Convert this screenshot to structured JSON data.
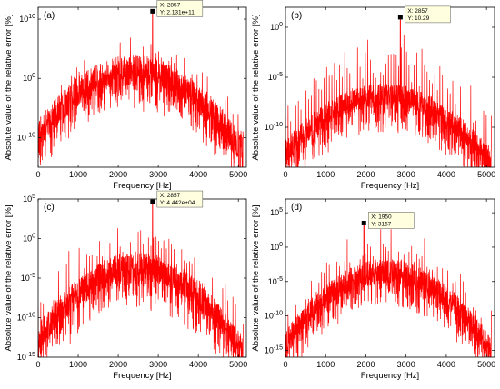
{
  "chart_data": [
    {
      "type": "line",
      "panel_label": "(a)",
      "xlabel": "Frequency [Hz]",
      "ylabel": "Absolute value of the relative error [%]",
      "xlim": [
        0,
        5200
      ],
      "ylim_log10": [
        -15,
        12
      ],
      "yscale": "log",
      "xticks": [
        0,
        1000,
        2000,
        3000,
        4000,
        5000
      ],
      "yticks": [
        {
          "exp": -10,
          "label": "10",
          "sup": "-10"
        },
        {
          "exp": 0,
          "label": "10",
          "sup": "0"
        },
        {
          "exp": 10,
          "label": "10",
          "sup": "10"
        }
      ],
      "grid": false,
      "line_color": "#ff0000",
      "envelope": {
        "f_range": [
          0,
          5120
        ],
        "center_freq": 2400,
        "mean_peak_log10": 1.5,
        "mean_edge_log10": -11,
        "noise_amplitude": 2.5,
        "dip_depth": 5,
        "spike_height": 3.5,
        "spike_spacing": 64
      },
      "datatip": {
        "x": 2857,
        "y_log10": 11.33,
        "x_text": "X: 2857",
        "y_text": "Y: 2.131e+11"
      }
    },
    {
      "type": "line",
      "panel_label": "(b)",
      "xlabel": "Frequency [Hz]",
      "ylabel": "Absolute value of the relative error [%]",
      "xlim": [
        0,
        5200
      ],
      "ylim_log10": [
        -14,
        2
      ],
      "yscale": "log",
      "xticks": [
        0,
        1000,
        2000,
        3000,
        4000,
        5000
      ],
      "yticks": [
        {
          "exp": -10,
          "label": "10",
          "sup": "-10"
        },
        {
          "exp": -5,
          "label": "10",
          "sup": "-5"
        },
        {
          "exp": 0,
          "label": "10",
          "sup": "0"
        }
      ],
      "grid": false,
      "line_color": "#ff0000",
      "envelope": {
        "f_range": [
          0,
          5120
        ],
        "center_freq": 2450,
        "mean_peak_log10": -6.8,
        "mean_edge_log10": -13,
        "noise_amplitude": 1.2,
        "dip_depth": 3,
        "spike_height": 4.5,
        "spike_spacing": 64
      },
      "datatip": {
        "x": 2857,
        "y_log10": 1.01,
        "x_text": "X: 2857",
        "y_text": "Y: 10.29"
      }
    },
    {
      "type": "line",
      "panel_label": "(c)",
      "xlabel": "Frequency [Hz]",
      "ylabel": "Absolute value of the relative error [%]",
      "xlim": [
        0,
        5200
      ],
      "ylim_log10": [
        -15,
        5
      ],
      "yscale": "log",
      "xticks": [
        0,
        1000,
        2000,
        3000,
        4000,
        5000
      ],
      "yticks": [
        {
          "exp": -15,
          "label": "10",
          "sup": "-15"
        },
        {
          "exp": -10,
          "label": "10",
          "sup": "-10"
        },
        {
          "exp": -5,
          "label": "10",
          "sup": "-5"
        },
        {
          "exp": 0,
          "label": "10",
          "sup": "0"
        },
        {
          "exp": 5,
          "label": "10",
          "sup": "5"
        }
      ],
      "grid": false,
      "line_color": "#ff0000",
      "envelope": {
        "f_range": [
          0,
          5120
        ],
        "center_freq": 2450,
        "mean_peak_log10": -3.5,
        "mean_edge_log10": -13.5,
        "noise_amplitude": 1.8,
        "dip_depth": 4,
        "spike_height": 4,
        "spike_spacing": 64
      },
      "datatip": {
        "x": 2857,
        "y_log10": 4.65,
        "x_text": "X: 2857",
        "y_text": "Y: 4.442e+04"
      }
    },
    {
      "type": "line",
      "panel_label": "(d)",
      "xlabel": "Frequency [Hz]",
      "ylabel": "Absolute value of the relative error [%]",
      "xlim": [
        0,
        5200
      ],
      "ylim_log10": [
        -16,
        7
      ],
      "yscale": "log",
      "xticks": [
        0,
        1000,
        2000,
        3000,
        4000,
        5000
      ],
      "yticks": [
        {
          "exp": -15,
          "label": "10",
          "sup": "-15"
        },
        {
          "exp": -10,
          "label": "10",
          "sup": "-10"
        },
        {
          "exp": -5,
          "label": "10",
          "sup": "-5"
        },
        {
          "exp": 0,
          "label": "10",
          "sup": "0"
        },
        {
          "exp": 5,
          "label": "10",
          "sup": "5"
        }
      ],
      "grid": false,
      "line_color": "#ff0000",
      "envelope": {
        "f_range": [
          0,
          5120
        ],
        "center_freq": 2500,
        "mean_peak_log10": -3.5,
        "mean_edge_log10": -14.5,
        "noise_amplitude": 1.8,
        "dip_depth": 4,
        "spike_height": 4,
        "spike_spacing": 64
      },
      "datatip": {
        "x": 1950,
        "y_log10": 3.5,
        "x_text": "X: 1950",
        "y_text": "Y: 3157"
      }
    }
  ]
}
